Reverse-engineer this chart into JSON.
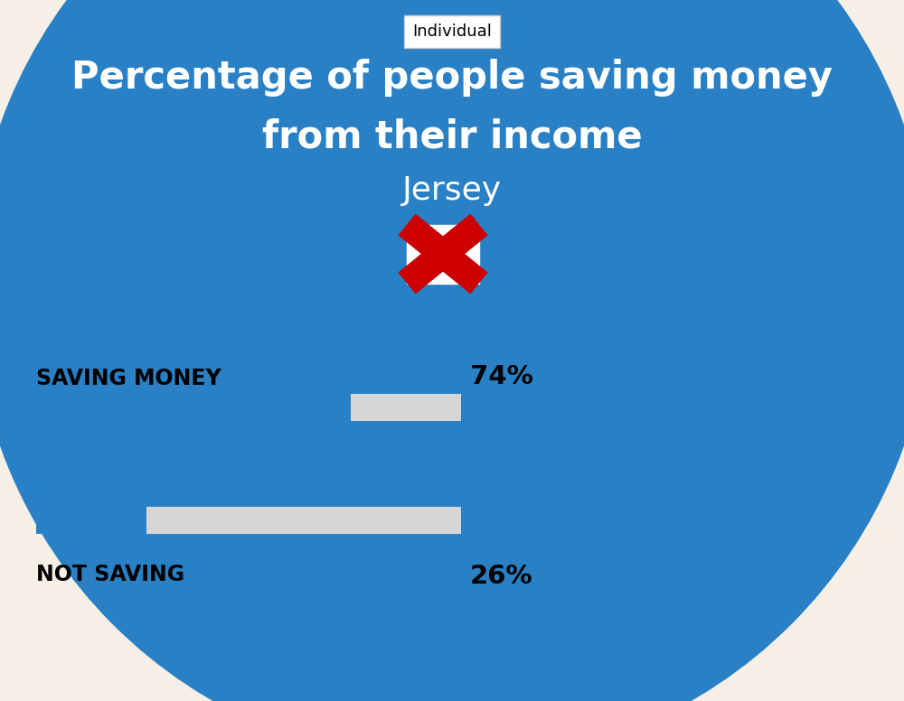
{
  "title_line1": "Percentage of people saving money",
  "title_line2": "from their income",
  "subtitle": "Jersey",
  "tab_label": "Individual",
  "bg_color": "#F5EFE6",
  "blue_color": "#2980C4",
  "bar_bg_color": "#D5D5D5",
  "bar1_label": "SAVING MONEY",
  "bar1_value": 74,
  "bar1_pct": "74%",
  "bar2_label": "NOT SAVING",
  "bar2_value": 26,
  "bar2_pct": "26%",
  "label_fontsize": 17,
  "pct_fontsize": 21,
  "title_fontsize": 30,
  "subtitle_fontsize": 26,
  "tab_fontsize": 13,
  "fig_width": 10.0,
  "fig_height": 7.76,
  "dpi": 100
}
